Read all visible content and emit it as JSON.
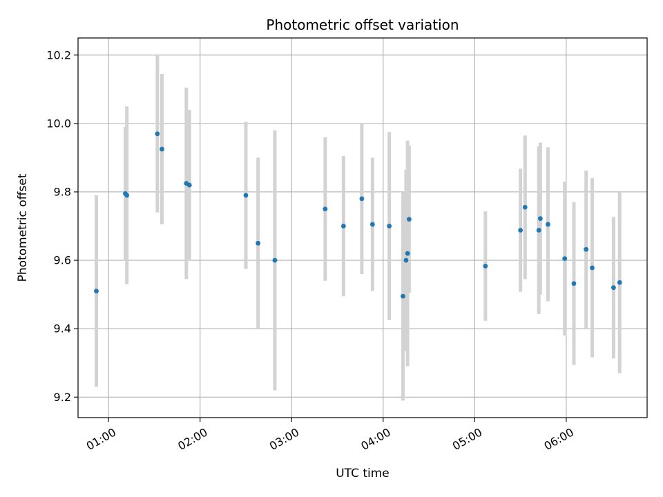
{
  "chart_data": {
    "type": "scatter",
    "title": "Photometric offset variation",
    "xlabel": "UTC time",
    "ylabel": "Photometric offset",
    "x_ticks": [
      "01:00",
      "02:00",
      "03:00",
      "04:00",
      "05:00",
      "06:00"
    ],
    "y_ticks": [
      "9.2",
      "9.4",
      "9.6",
      "9.8",
      "10.0",
      "10.2"
    ],
    "xlim": [
      "00:40",
      "06:53"
    ],
    "ylim": [
      9.14,
      10.25
    ],
    "grid": true,
    "colors": {
      "marker": "#1f77b4",
      "errorbar": "#d3d3d3",
      "grid": "#b0b0b0"
    },
    "points": [
      {
        "time": "00:52",
        "value": 9.51,
        "err": 0.28
      },
      {
        "time": "01:11",
        "value": 9.795,
        "err": 0.195
      },
      {
        "time": "01:12",
        "value": 9.79,
        "err": 0.26
      },
      {
        "time": "01:32",
        "value": 9.97,
        "err": 0.23
      },
      {
        "time": "01:35",
        "value": 9.925,
        "err": 0.22
      },
      {
        "time": "01:51",
        "value": 9.825,
        "err": 0.28
      },
      {
        "time": "01:53",
        "value": 9.82,
        "err": 0.22
      },
      {
        "time": "02:30",
        "value": 9.79,
        "err": 0.215
      },
      {
        "time": "02:38",
        "value": 9.65,
        "err": 0.25
      },
      {
        "time": "02:49",
        "value": 9.6,
        "err": 0.38
      },
      {
        "time": "03:22",
        "value": 9.75,
        "err": 0.21
      },
      {
        "time": "03:34",
        "value": 9.7,
        "err": 0.205
      },
      {
        "time": "03:46",
        "value": 9.78,
        "err": 0.22
      },
      {
        "time": "03:53",
        "value": 9.705,
        "err": 0.195
      },
      {
        "time": "04:04",
        "value": 9.7,
        "err": 0.275
      },
      {
        "time": "04:13",
        "value": 9.495,
        "err": 0.305
      },
      {
        "time": "04:15",
        "value": 9.6,
        "err": 0.265
      },
      {
        "time": "04:16",
        "value": 9.62,
        "err": 0.33
      },
      {
        "time": "04:17",
        "value": 9.72,
        "err": 0.215
      },
      {
        "time": "05:07",
        "value": 9.583,
        "err": 0.16
      },
      {
        "time": "05:30",
        "value": 9.688,
        "err": 0.18
      },
      {
        "time": "05:33",
        "value": 9.755,
        "err": 0.21
      },
      {
        "time": "05:42",
        "value": 9.688,
        "err": 0.245
      },
      {
        "time": "05:43",
        "value": 9.722,
        "err": 0.222
      },
      {
        "time": "05:48",
        "value": 9.705,
        "err": 0.225
      },
      {
        "time": "05:59",
        "value": 9.605,
        "err": 0.225
      },
      {
        "time": "06:05",
        "value": 9.532,
        "err": 0.238
      },
      {
        "time": "06:13",
        "value": 9.632,
        "err": 0.23
      },
      {
        "time": "06:17",
        "value": 9.578,
        "err": 0.262
      },
      {
        "time": "06:31",
        "value": 9.52,
        "err": 0.207
      },
      {
        "time": "06:35",
        "value": 9.535,
        "err": 0.265
      }
    ]
  }
}
